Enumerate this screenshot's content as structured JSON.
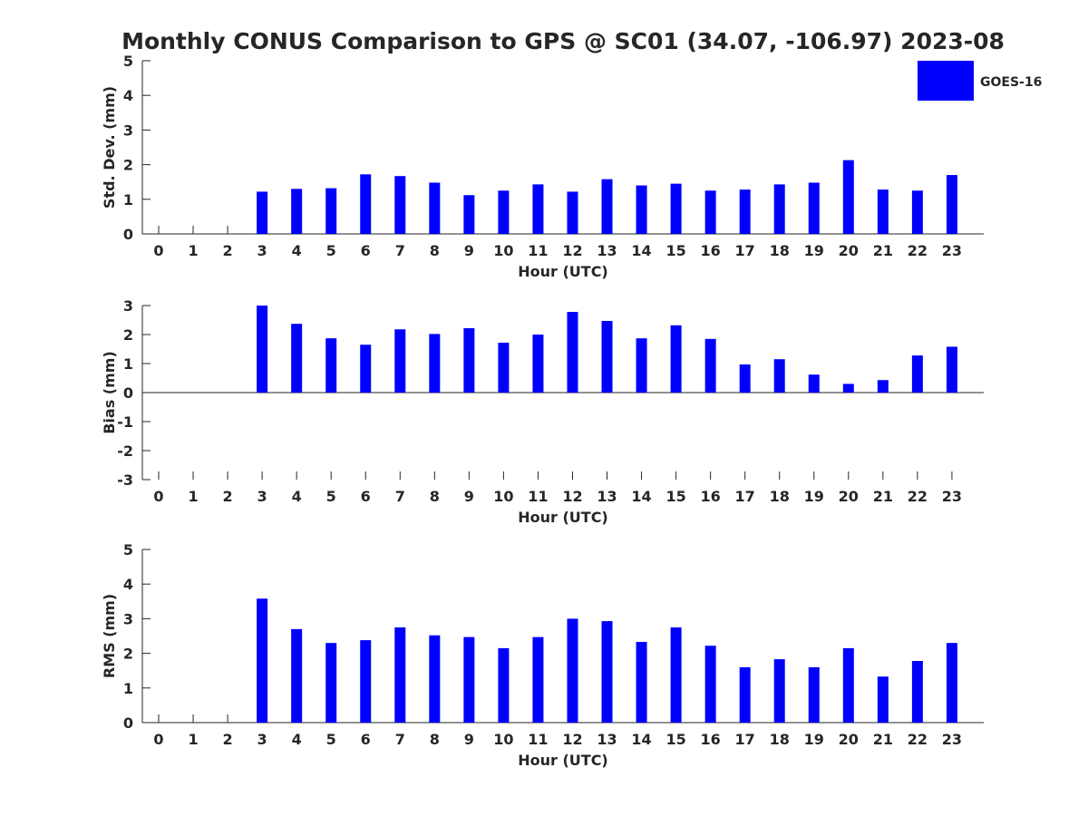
{
  "figure": {
    "title": "Monthly CONUS Comparison to GPS @ SC01 (34.07, -106.97) 2023-08",
    "bar_color": "#0000ff",
    "legend": {
      "label": "GOES-16",
      "placement": "top-right"
    }
  },
  "chart_data": [
    {
      "type": "bar",
      "xlabel": "Hour (UTC)",
      "ylabel": "Std. Dev. (mm)",
      "ylim": [
        0,
        5
      ],
      "yticks": [
        0,
        1,
        2,
        3,
        4,
        5
      ],
      "categories": [
        "0",
        "1",
        "2",
        "3",
        "4",
        "5",
        "6",
        "7",
        "8",
        "9",
        "10",
        "11",
        "12",
        "13",
        "14",
        "15",
        "16",
        "17",
        "18",
        "19",
        "20",
        "21",
        "22",
        "23"
      ],
      "series": [
        {
          "name": "GOES-16",
          "values": [
            null,
            null,
            null,
            1.22,
            1.3,
            1.32,
            1.72,
            1.67,
            1.48,
            1.12,
            1.25,
            1.43,
            1.22,
            1.58,
            1.4,
            1.45,
            1.25,
            1.28,
            1.43,
            1.48,
            2.13,
            1.28,
            1.25,
            1.7
          ]
        }
      ],
      "grid": false
    },
    {
      "type": "bar",
      "xlabel": "Hour (UTC)",
      "ylabel": "Bias (mm)",
      "ylim": [
        -3,
        3
      ],
      "yticks": [
        -3,
        -2,
        -1,
        0,
        1,
        2,
        3
      ],
      "categories": [
        "0",
        "1",
        "2",
        "3",
        "4",
        "5",
        "6",
        "7",
        "8",
        "9",
        "10",
        "11",
        "12",
        "13",
        "14",
        "15",
        "16",
        "17",
        "18",
        "19",
        "20",
        "21",
        "22",
        "23"
      ],
      "series": [
        {
          "name": "GOES-16",
          "values": [
            null,
            null,
            null,
            3.0,
            2.37,
            1.87,
            1.65,
            2.18,
            2.02,
            2.22,
            1.72,
            2.0,
            2.78,
            2.47,
            1.87,
            2.32,
            1.85,
            0.97,
            1.15,
            0.62,
            0.3,
            0.43,
            1.28,
            1.58
          ]
        }
      ],
      "grid": false
    },
    {
      "type": "bar",
      "xlabel": "Hour (UTC)",
      "ylabel": "RMS (mm)",
      "ylim": [
        0,
        5
      ],
      "yticks": [
        0,
        1,
        2,
        3,
        4,
        5
      ],
      "categories": [
        "0",
        "1",
        "2",
        "3",
        "4",
        "5",
        "6",
        "7",
        "8",
        "9",
        "10",
        "11",
        "12",
        "13",
        "14",
        "15",
        "16",
        "17",
        "18",
        "19",
        "20",
        "21",
        "22",
        "23"
      ],
      "series": [
        {
          "name": "GOES-16",
          "values": [
            null,
            null,
            null,
            3.58,
            2.7,
            2.3,
            2.38,
            2.75,
            2.52,
            2.47,
            2.15,
            2.47,
            3.0,
            2.93,
            2.33,
            2.75,
            2.22,
            1.6,
            1.83,
            1.6,
            2.15,
            1.33,
            1.78,
            2.3
          ]
        }
      ],
      "grid": false
    }
  ]
}
